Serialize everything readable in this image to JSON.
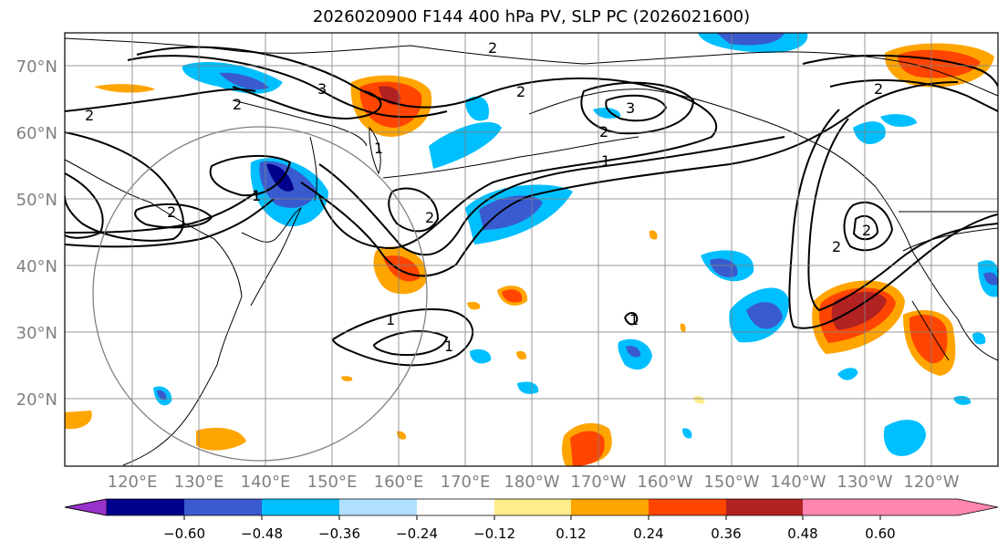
{
  "title": "2026020900 F144 400 hPa PV, SLP PC (2026021600)",
  "lat_labels": [
    "70°N",
    "60°N",
    "50°N",
    "40°N",
    "30°N",
    "20°N"
  ],
  "lon_labels": [
    "120°E",
    "130°E",
    "140°E",
    "150°E",
    "160°E",
    "170°E",
    "180°W",
    "170°W",
    "160°W",
    "150°W",
    "140°W",
    "130°W",
    "120°W"
  ],
  "colorbar": {
    "tick_labels": [
      "−0.60",
      "−0.48",
      "−0.36",
      "−0.24",
      "−0.12",
      "0.12",
      "0.24",
      "0.36",
      "0.48",
      "0.60"
    ],
    "colors": [
      "#9932cc",
      "#00008b",
      "#3a5bd0",
      "#00bfff",
      "#b0e0ff",
      "#ffffff",
      "#ffec8b",
      "#ffa500",
      "#ff4500",
      "#b22222",
      "#ff86b0"
    ]
  },
  "contour_labels": [
    "2",
    "2",
    "2",
    "2",
    "2",
    "2",
    "2",
    "2",
    "2",
    "2",
    "1",
    "1",
    "1",
    "1",
    "1",
    "1",
    "3",
    "3"
  ]
}
